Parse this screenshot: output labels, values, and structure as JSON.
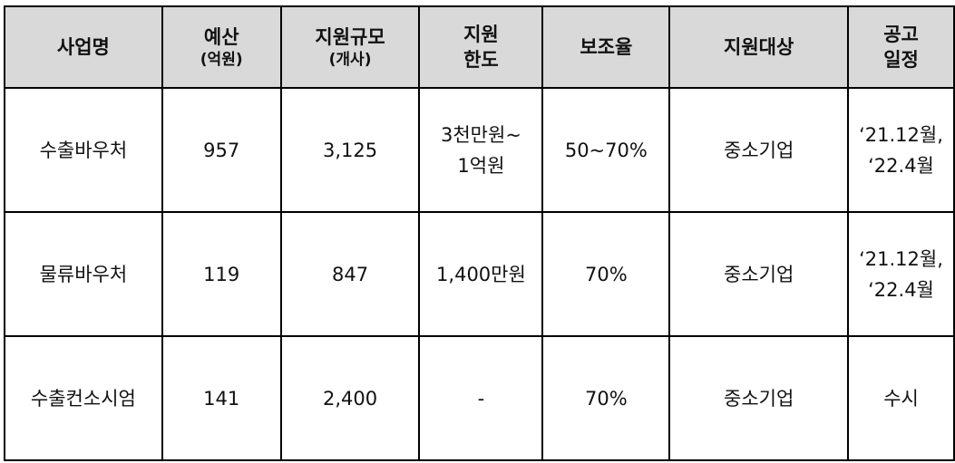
{
  "headers": [
    {
      "main": "사업명",
      "sub": ""
    },
    {
      "main": "예산",
      "sub": "(억원)"
    },
    {
      "main": "지원규모",
      "sub": "(개사)"
    },
    {
      "main": "지원\n한도",
      "sub": ""
    },
    {
      "main": "보조율",
      "sub": ""
    },
    {
      "main": "지원대상",
      "sub": ""
    },
    {
      "main": "공고\n일정",
      "sub": ""
    }
  ],
  "rows": [
    [
      "수출바우처",
      "957",
      "3,125",
      "3천만원~\n1억원",
      "50~70%",
      "중소기업",
      "‘21.12월,\n‘22.4월"
    ],
    [
      "물류바우처",
      "119",
      "847",
      "1,400만원",
      "70%",
      "중소기업",
      "‘21.12월,\n‘22.4월"
    ],
    [
      "수출컨소시엄",
      "141",
      "2,400",
      "-",
      "70%",
      "중소기업",
      "수시"
    ]
  ]
}
